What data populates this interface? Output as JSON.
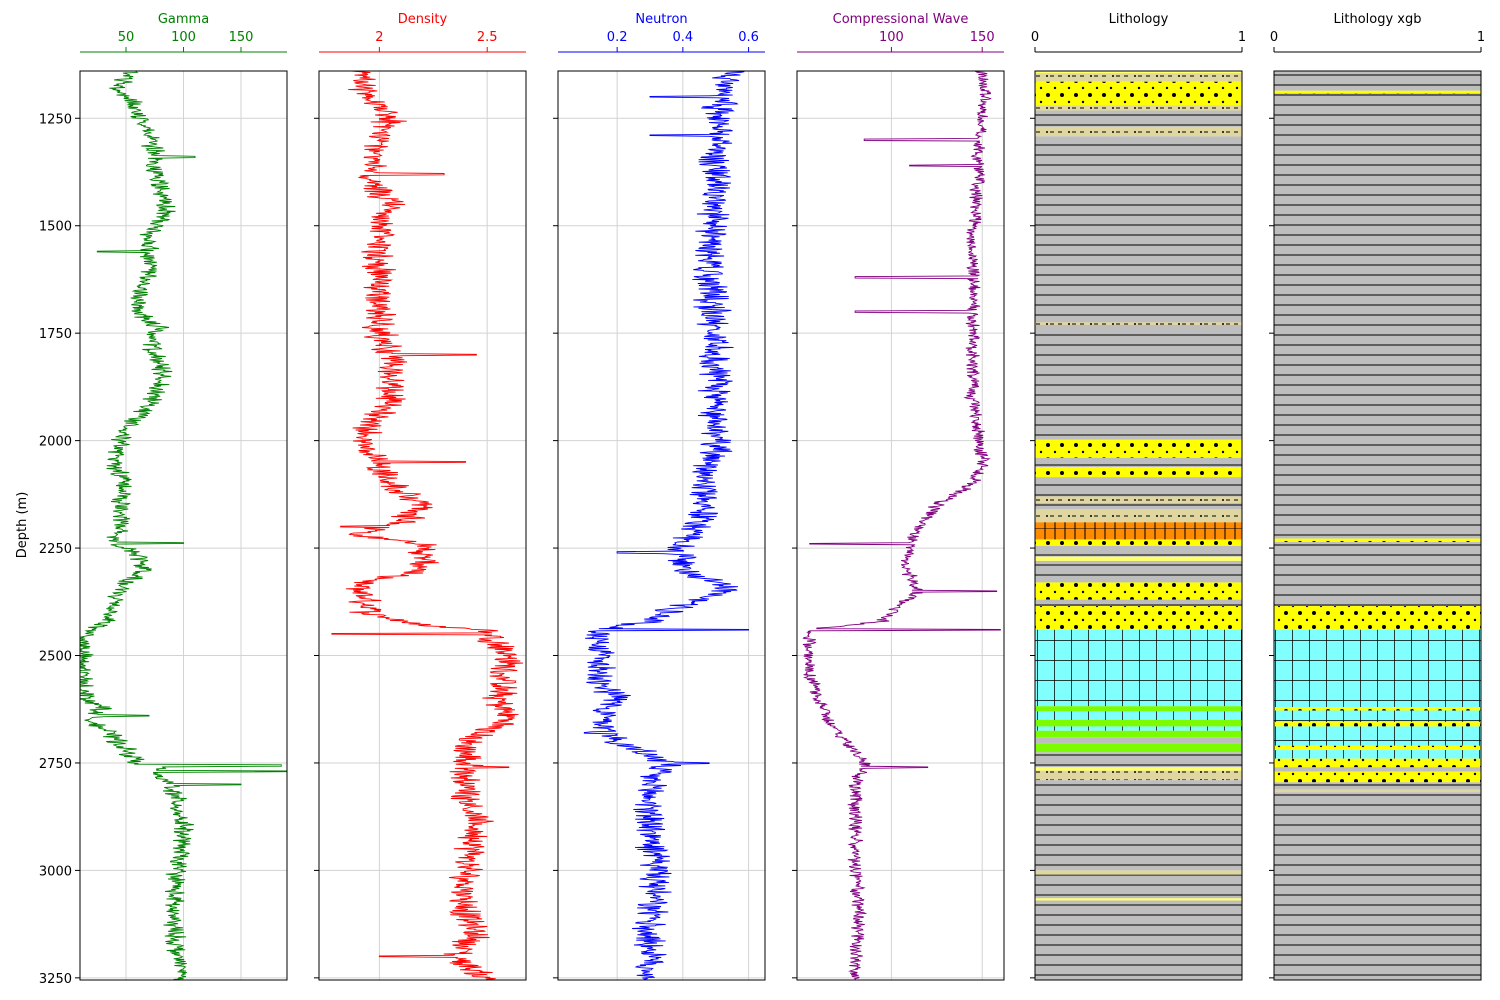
{
  "chart_data": {
    "type": "line",
    "layout": "well-log",
    "ylabel": "Depth (m)",
    "ylim": [
      3255,
      1140
    ],
    "yticks": [
      1250,
      1500,
      1750,
      2000,
      2250,
      2500,
      2750,
      3000,
      3250
    ],
    "grid": true,
    "tracks": [
      {
        "name": "Gamma",
        "color": "#008000",
        "xlim": [
          10,
          190
        ],
        "xticks": [
          50,
          100,
          150
        ],
        "profile": [
          [
            1140,
            55
          ],
          [
            1180,
            42
          ],
          [
            1210,
            55
          ],
          [
            1240,
            62
          ],
          [
            1300,
            72
          ],
          [
            1400,
            78
          ],
          [
            1470,
            85
          ],
          [
            1520,
            70
          ],
          [
            1600,
            70
          ],
          [
            1650,
            62
          ],
          [
            1700,
            60
          ],
          [
            1740,
            80
          ],
          [
            1760,
            70
          ],
          [
            1800,
            75
          ],
          [
            1850,
            82
          ],
          [
            1900,
            75
          ],
          [
            1950,
            60
          ],
          [
            2000,
            45
          ],
          [
            2050,
            40
          ],
          [
            2100,
            50
          ],
          [
            2150,
            45
          ],
          [
            2200,
            45
          ],
          [
            2240,
            38
          ],
          [
            2260,
            60
          ],
          [
            2300,
            65
          ],
          [
            2340,
            45
          ],
          [
            2380,
            40
          ],
          [
            2420,
            35
          ],
          [
            2440,
            20
          ],
          [
            2470,
            12
          ],
          [
            2530,
            12
          ],
          [
            2600,
            15
          ],
          [
            2620,
            30
          ],
          [
            2650,
            20
          ],
          [
            2680,
            35
          ],
          [
            2720,
            50
          ],
          [
            2750,
            60
          ],
          [
            2760,
            80
          ],
          [
            2780,
            75
          ],
          [
            2800,
            90
          ],
          [
            2900,
            100
          ],
          [
            3000,
            95
          ],
          [
            3100,
            90
          ],
          [
            3200,
            95
          ],
          [
            3255,
            100
          ]
        ],
        "noise": 7,
        "spikes": [
          [
            1340,
            110
          ],
          [
            1560,
            25
          ],
          [
            2238,
            100
          ],
          [
            2756,
            185
          ],
          [
            2770,
            190
          ],
          [
            2800,
            150
          ],
          [
            2640,
            70
          ]
        ]
      },
      {
        "name": "Density",
        "color": "#ff0000",
        "xlim": [
          1.72,
          2.68
        ],
        "xticks": [
          2.0,
          2.5
        ],
        "profile": [
          [
            1140,
            1.9
          ],
          [
            1200,
            1.95
          ],
          [
            1250,
            2.05
          ],
          [
            1300,
            2.0
          ],
          [
            1400,
            1.95
          ],
          [
            1450,
            2.05
          ],
          [
            1500,
            2.0
          ],
          [
            1700,
            2.0
          ],
          [
            1750,
            2.0
          ],
          [
            1800,
            2.05
          ],
          [
            1900,
            2.05
          ],
          [
            2000,
            1.92
          ],
          [
            2050,
            2.0
          ],
          [
            2100,
            2.05
          ],
          [
            2150,
            2.2
          ],
          [
            2190,
            2.1
          ],
          [
            2220,
            1.9
          ],
          [
            2240,
            2.2
          ],
          [
            2300,
            2.2
          ],
          [
            2330,
            1.9
          ],
          [
            2400,
            1.95
          ],
          [
            2430,
            2.2
          ],
          [
            2440,
            2.5
          ],
          [
            2500,
            2.6
          ],
          [
            2600,
            2.55
          ],
          [
            2650,
            2.6
          ],
          [
            2700,
            2.4
          ],
          [
            2750,
            2.4
          ],
          [
            2800,
            2.4
          ],
          [
            2900,
            2.45
          ],
          [
            3000,
            2.4
          ],
          [
            3100,
            2.4
          ],
          [
            3150,
            2.45
          ],
          [
            3200,
            2.35
          ],
          [
            3255,
            2.5
          ]
        ],
        "noise": 0.06,
        "spikes": [
          [
            1380,
            2.3
          ],
          [
            1800,
            2.45
          ],
          [
            2050,
            2.4
          ],
          [
            2200,
            1.82
          ],
          [
            2450,
            1.78
          ],
          [
            2760,
            2.6
          ],
          [
            3200,
            2.0
          ]
        ]
      },
      {
        "name": "Neutron",
        "color": "#0000ff",
        "xlim": [
          0.02,
          0.65
        ],
        "xticks": [
          0.2,
          0.4,
          0.6
        ],
        "profile": [
          [
            1140,
            0.55
          ],
          [
            1200,
            0.52
          ],
          [
            1300,
            0.5
          ],
          [
            1400,
            0.5
          ],
          [
            1600,
            0.48
          ],
          [
            1800,
            0.5
          ],
          [
            2000,
            0.5
          ],
          [
            2200,
            0.45
          ],
          [
            2250,
            0.38
          ],
          [
            2300,
            0.4
          ],
          [
            2340,
            0.55
          ],
          [
            2400,
            0.35
          ],
          [
            2420,
            0.3
          ],
          [
            2440,
            0.15
          ],
          [
            2500,
            0.15
          ],
          [
            2550,
            0.15
          ],
          [
            2600,
            0.2
          ],
          [
            2650,
            0.15
          ],
          [
            2700,
            0.2
          ],
          [
            2750,
            0.35
          ],
          [
            2780,
            0.3
          ],
          [
            2800,
            0.3
          ],
          [
            2900,
            0.3
          ],
          [
            3000,
            0.32
          ],
          [
            3100,
            0.3
          ],
          [
            3255,
            0.3
          ]
        ],
        "noise": 0.04,
        "spikes": [
          [
            1200,
            0.3
          ],
          [
            1290,
            0.3
          ],
          [
            2260,
            0.2
          ],
          [
            2440,
            0.6
          ],
          [
            2750,
            0.48
          ],
          [
            2680,
            0.1
          ]
        ]
      },
      {
        "name": "Compressional Wave",
        "color": "#800080",
        "xlim": [
          48,
          162
        ],
        "xticks": [
          100,
          150
        ],
        "profile": [
          [
            1140,
            150
          ],
          [
            1200,
            152
          ],
          [
            1300,
            148
          ],
          [
            1400,
            148
          ],
          [
            1500,
            145
          ],
          [
            1600,
            145
          ],
          [
            1700,
            145
          ],
          [
            1800,
            145
          ],
          [
            1900,
            145
          ],
          [
            2000,
            148
          ],
          [
            2050,
            150
          ],
          [
            2100,
            145
          ],
          [
            2150,
            125
          ],
          [
            2200,
            115
          ],
          [
            2250,
            110
          ],
          [
            2300,
            108
          ],
          [
            2350,
            115
          ],
          [
            2400,
            100
          ],
          [
            2420,
            95
          ],
          [
            2440,
            55
          ],
          [
            2500,
            55
          ],
          [
            2550,
            55
          ],
          [
            2600,
            60
          ],
          [
            2650,
            65
          ],
          [
            2700,
            75
          ],
          [
            2750,
            85
          ],
          [
            2800,
            80
          ],
          [
            2900,
            80
          ],
          [
            3000,
            80
          ],
          [
            3100,
            82
          ],
          [
            3200,
            80
          ],
          [
            3255,
            80
          ]
        ],
        "noise": 3,
        "spikes": [
          [
            1300,
            85
          ],
          [
            1360,
            110
          ],
          [
            1700,
            80
          ],
          [
            2240,
            55
          ],
          [
            2350,
            158
          ],
          [
            2760,
            120
          ],
          [
            2440,
            160
          ],
          [
            1620,
            80
          ]
        ]
      }
    ],
    "lithology_tracks": [
      {
        "name": "Lithology",
        "xlim": [
          0,
          1
        ],
        "xticks": [
          0,
          1
        ],
        "intervals": [
          [
            1140,
            1145,
            "sand"
          ],
          [
            1145,
            1165,
            "sandstone_a"
          ],
          [
            1165,
            1220,
            "sandstone"
          ],
          [
            1220,
            1232,
            "sandstone_a"
          ],
          [
            1232,
            1270,
            "shale"
          ],
          [
            1270,
            1292,
            "sandstone_a"
          ],
          [
            1292,
            1725,
            "shale"
          ],
          [
            1725,
            1732,
            "sandstone_a"
          ],
          [
            1732,
            1998,
            "shale"
          ],
          [
            1998,
            2040,
            "sandstone"
          ],
          [
            2040,
            2062,
            "shale"
          ],
          [
            2062,
            2085,
            "sandstone"
          ],
          [
            2085,
            2130,
            "shale"
          ],
          [
            2130,
            2145,
            "sandstone_a"
          ],
          [
            2145,
            2160,
            "shale"
          ],
          [
            2160,
            2190,
            "sandstone_a"
          ],
          [
            2190,
            2230,
            "marl"
          ],
          [
            2230,
            2245,
            "sandstone"
          ],
          [
            2245,
            2270,
            "shale"
          ],
          [
            2270,
            2280,
            "sand"
          ],
          [
            2280,
            2330,
            "shale"
          ],
          [
            2330,
            2370,
            "sandstone"
          ],
          [
            2370,
            2385,
            "shale"
          ],
          [
            2385,
            2440,
            "sandstone"
          ],
          [
            2440,
            2618,
            "limestone"
          ],
          [
            2618,
            2630,
            "green"
          ],
          [
            2630,
            2650,
            "limestone"
          ],
          [
            2650,
            2665,
            "green"
          ],
          [
            2665,
            2675,
            "limestone"
          ],
          [
            2675,
            2690,
            "green"
          ],
          [
            2690,
            2705,
            "shale"
          ],
          [
            2705,
            2725,
            "green"
          ],
          [
            2725,
            2760,
            "shale"
          ],
          [
            2760,
            2768,
            "sand"
          ],
          [
            2768,
            2790,
            "sandstone_a"
          ],
          [
            2790,
            3000,
            "shale"
          ],
          [
            3000,
            3010,
            "sandstone_a"
          ],
          [
            3010,
            3065,
            "shale"
          ],
          [
            3065,
            3070,
            "sand"
          ],
          [
            3070,
            3255,
            "shale"
          ]
        ]
      },
      {
        "name": "Lithology xgb",
        "xlim": [
          0,
          1
        ],
        "xticks": [
          0,
          1
        ],
        "intervals": [
          [
            1140,
            1186,
            "shale"
          ],
          [
            1186,
            1192,
            "sandstone"
          ],
          [
            1192,
            2228,
            "shale"
          ],
          [
            2228,
            2236,
            "sandstone"
          ],
          [
            2236,
            2385,
            "shale"
          ],
          [
            2385,
            2440,
            "sandstone"
          ],
          [
            2440,
            2620,
            "limestone"
          ],
          [
            2620,
            2628,
            "sandstone"
          ],
          [
            2628,
            2655,
            "limestone"
          ],
          [
            2655,
            2665,
            "sandstone"
          ],
          [
            2665,
            2710,
            "limestone"
          ],
          [
            2710,
            2720,
            "sandstone"
          ],
          [
            2720,
            2740,
            "limestone"
          ],
          [
            2740,
            2760,
            "sandstone"
          ],
          [
            2760,
            2770,
            "shale"
          ],
          [
            2770,
            2795,
            "sandstone"
          ],
          [
            2795,
            2812,
            "shale"
          ],
          [
            2812,
            2818,
            "sandstone_a"
          ],
          [
            2818,
            3255,
            "shale"
          ]
        ]
      }
    ]
  }
}
